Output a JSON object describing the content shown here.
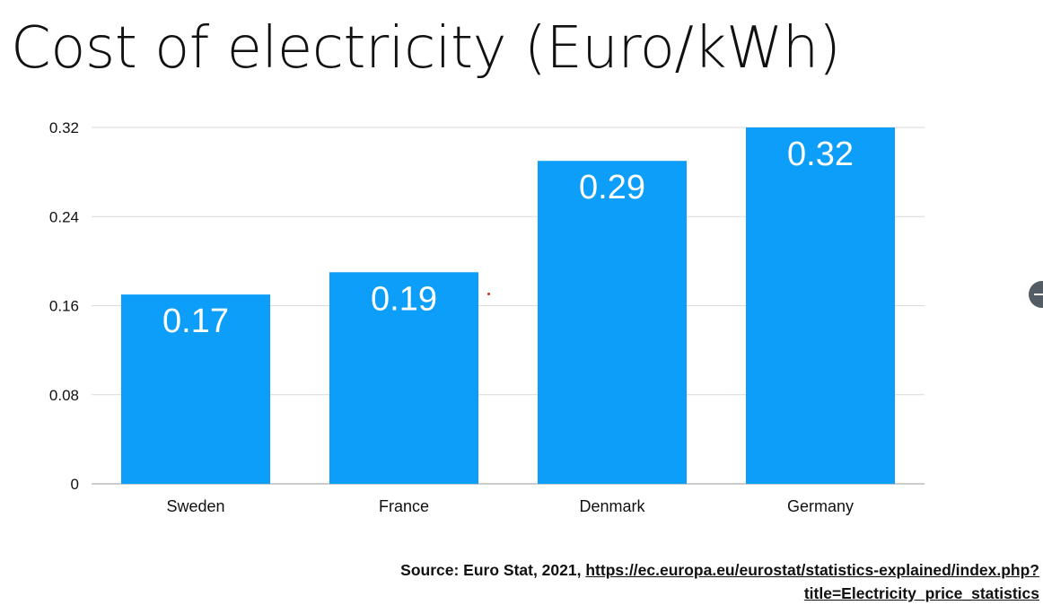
{
  "chart_data": {
    "type": "bar",
    "title": "Cost of electricity (Euro/kWh)",
    "categories": [
      "Sweden",
      "France",
      "Denmark",
      "Germany"
    ],
    "values": [
      0.17,
      0.19,
      0.29,
      0.32
    ],
    "data_labels": [
      "0.17",
      "0.19",
      "0.29",
      "0.32"
    ],
    "yticks": [
      0,
      0.08,
      0.16,
      0.24,
      0.32
    ],
    "ytick_labels": [
      "0",
      "0.08",
      "0.16",
      "0.24",
      "0.32"
    ],
    "ylim": [
      0,
      0.32
    ],
    "grid": true,
    "bar_color": "#0d9ef9",
    "label_color": "#ffffff",
    "grid_color": "#d9d9d9"
  },
  "source": {
    "prefix": "Source: Euro Stat, 2021, ",
    "link_line1": "https://ec.europa.eu/eurostat/statistics-explained/index.php?",
    "link_line2": "title=Electricity_price_statistics"
  }
}
